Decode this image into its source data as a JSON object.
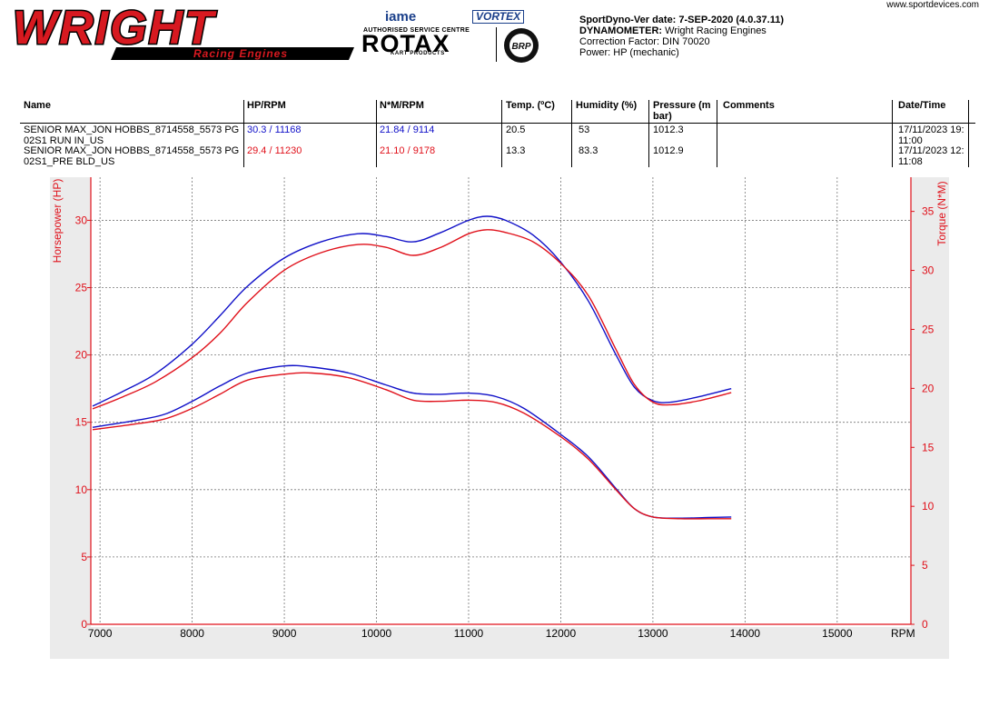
{
  "header": {
    "logo_main": "WRIGHT",
    "logo_sub": "Racing Engines",
    "iame": "iame",
    "vortex": "VORTEX",
    "rotax_service": "AUTHORISED SERVICE CENTRE",
    "rotax": "ROTAX",
    "rotax_products": "KART PRODUCTS",
    "brp": "BRP",
    "website": "www.sportdevices.com",
    "version_line": "SportDyno-Ver date: 7-SEP-2020 (4.0.37.11)",
    "dyno_label": "DYNAMOMETER:",
    "dyno_value": "Wright Racing Engines",
    "correction": "Correction Factor: DIN 70020",
    "power": "Power: HP (mechanic)"
  },
  "table": {
    "columns": [
      "Name",
      "HP/RPM",
      "N*M/RPM",
      "Temp. (ºC)",
      "Humidity (%)",
      "Pressure (m bar)",
      "Comments",
      "Date/Time"
    ],
    "rows": [
      {
        "name": "SENIOR MAX_JON HOBBS_8714558_5573 PG 02S1 RUN IN_US",
        "hp_rpm": "30.3 / 11168",
        "nm_rpm": "21.84 / 9114",
        "temp": "20.5",
        "humidity": "53",
        "pressure": "1012.3",
        "comments": "",
        "datetime": "17/11/2023 19: 11:00",
        "color": "#1010c8"
      },
      {
        "name": "SENIOR MAX_JON HOBBS_8714558_5573 PG 02S1_PRE BLD_US",
        "hp_rpm": "29.4 / 11230",
        "nm_rpm": "21.10 / 9178",
        "temp": "13.3",
        "humidity": "83.3",
        "pressure": "1012.9",
        "comments": "",
        "datetime": "17/11/2023 12: 11:08",
        "color": "#e0101a"
      }
    ]
  },
  "chart_data": {
    "type": "line",
    "xlabel": "RPM",
    "ylabel_left": "Horsepower (HP)",
    "ylabel_right": "Torque (N*M)",
    "xlim": [
      6900,
      15800
    ],
    "ylim_left": [
      0,
      33.2
    ],
    "ylim_right": [
      0,
      37.9
    ],
    "x_ticks": [
      7000,
      8000,
      9000,
      10000,
      11000,
      12000,
      13000,
      14000,
      15000
    ],
    "y_left_ticks": [
      0,
      5,
      10,
      15,
      20,
      25,
      30
    ],
    "y_right_ticks": [
      0,
      5,
      10,
      15,
      20,
      25,
      30,
      35
    ],
    "grid": true,
    "axis_color": "#e0101a",
    "series": [
      {
        "name": "SENIOR MAX_JON HOBBS_8714558_5573 PG 02S1 RUN IN_US",
        "color": "#1010c8",
        "hp": [
          [
            6920,
            16.2
          ],
          [
            7250,
            17.3
          ],
          [
            7600,
            18.6
          ],
          [
            8000,
            20.8
          ],
          [
            8300,
            22.9
          ],
          [
            8600,
            25.1
          ],
          [
            9000,
            27.2
          ],
          [
            9400,
            28.4
          ],
          [
            9800,
            29.0
          ],
          [
            10100,
            28.8
          ],
          [
            10400,
            28.4
          ],
          [
            10700,
            29.1
          ],
          [
            11000,
            30.0
          ],
          [
            11200,
            30.3
          ],
          [
            11400,
            30.0
          ],
          [
            11700,
            28.9
          ],
          [
            12000,
            26.9
          ],
          [
            12300,
            24.0
          ],
          [
            12600,
            20.0
          ],
          [
            12800,
            17.6
          ],
          [
            13000,
            16.6
          ],
          [
            13200,
            16.5
          ],
          [
            13500,
            16.9
          ],
          [
            13850,
            17.5
          ]
        ],
        "torque": [
          [
            6920,
            16.7
          ],
          [
            7400,
            17.3
          ],
          [
            7700,
            17.8
          ],
          [
            8000,
            18.9
          ],
          [
            8300,
            20.2
          ],
          [
            8600,
            21.3
          ],
          [
            9000,
            21.9
          ],
          [
            9300,
            21.8
          ],
          [
            9700,
            21.3
          ],
          [
            10100,
            20.3
          ],
          [
            10400,
            19.6
          ],
          [
            10700,
            19.5
          ],
          [
            11000,
            19.6
          ],
          [
            11300,
            19.3
          ],
          [
            11600,
            18.3
          ],
          [
            12000,
            16.1
          ],
          [
            12300,
            14.2
          ],
          [
            12600,
            11.5
          ],
          [
            12800,
            9.8
          ],
          [
            13000,
            9.1
          ],
          [
            13300,
            9.0
          ],
          [
            13600,
            9.05
          ],
          [
            13850,
            9.1
          ]
        ]
      },
      {
        "name": "SENIOR MAX_JON HOBBS_8714558_5573 PG 02S1_PRE BLD_US",
        "color": "#e0101a",
        "hp": [
          [
            6920,
            16.0
          ],
          [
            7250,
            16.9
          ],
          [
            7600,
            18.0
          ],
          [
            8000,
            19.8
          ],
          [
            8300,
            21.6
          ],
          [
            8600,
            23.9
          ],
          [
            9000,
            26.3
          ],
          [
            9400,
            27.6
          ],
          [
            9800,
            28.2
          ],
          [
            10100,
            28.0
          ],
          [
            10400,
            27.4
          ],
          [
            10700,
            28.0
          ],
          [
            11000,
            29.0
          ],
          [
            11200,
            29.3
          ],
          [
            11400,
            29.1
          ],
          [
            11700,
            28.4
          ],
          [
            12000,
            26.8
          ],
          [
            12300,
            24.4
          ],
          [
            12600,
            20.4
          ],
          [
            12800,
            17.8
          ],
          [
            13000,
            16.5
          ],
          [
            13200,
            16.3
          ],
          [
            13500,
            16.6
          ],
          [
            13850,
            17.2
          ]
        ],
        "torque": [
          [
            6920,
            16.5
          ],
          [
            7400,
            17.0
          ],
          [
            7700,
            17.4
          ],
          [
            8000,
            18.3
          ],
          [
            8300,
            19.5
          ],
          [
            8600,
            20.7
          ],
          [
            9000,
            21.2
          ],
          [
            9300,
            21.3
          ],
          [
            9700,
            20.9
          ],
          [
            10100,
            19.9
          ],
          [
            10400,
            19.0
          ],
          [
            10700,
            18.9
          ],
          [
            11000,
            19.0
          ],
          [
            11300,
            18.8
          ],
          [
            11600,
            17.9
          ],
          [
            12000,
            15.9
          ],
          [
            12300,
            14.0
          ],
          [
            12600,
            11.4
          ],
          [
            12800,
            9.8
          ],
          [
            13000,
            9.1
          ],
          [
            13300,
            8.95
          ],
          [
            13600,
            8.95
          ],
          [
            13850,
            8.95
          ]
        ]
      }
    ]
  }
}
